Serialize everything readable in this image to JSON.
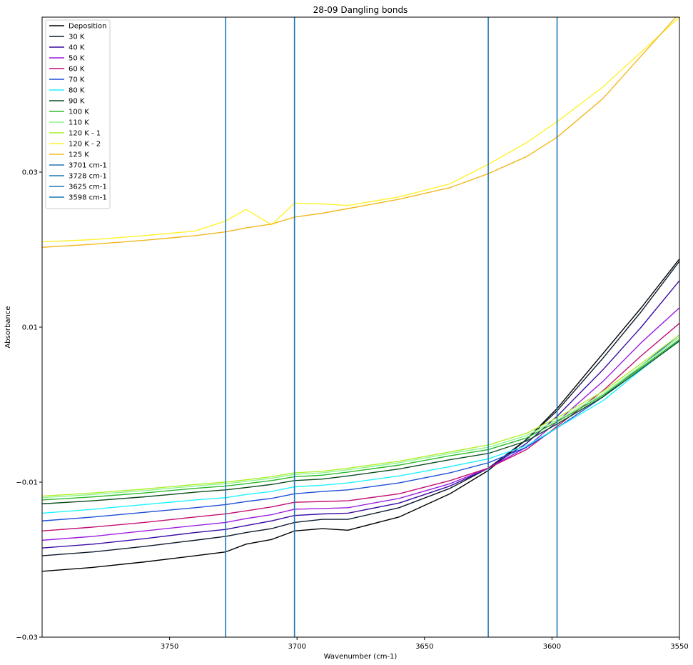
{
  "chart_data": {
    "type": "line",
    "title": "28-09 Dangling bonds",
    "xlabel": "Wavenumber (cm-1)",
    "ylabel": "Absorbance",
    "xlim": [
      3800,
      3550
    ],
    "ylim": [
      -0.03,
      0.05
    ],
    "x_ticks": [
      3750,
      3700,
      3650,
      3600,
      3550
    ],
    "y_ticks": [
      -0.03,
      -0.01,
      0.01,
      0.03
    ],
    "y_tick_labels": [
      "−0.03",
      "−0.01",
      "0.01",
      "0.03"
    ],
    "grid": false,
    "legend_position": "top-left",
    "x": [
      3800,
      3780,
      3760,
      3740,
      3728,
      3720,
      3710,
      3701,
      3690,
      3680,
      3660,
      3640,
      3625,
      3610,
      3598,
      3580,
      3565,
      3550
    ],
    "series": [
      {
        "name": "Deposition",
        "color": "#000000",
        "values": [
          -0.0215,
          -0.021,
          -0.0203,
          -0.0195,
          -0.019,
          -0.018,
          -0.0174,
          -0.0163,
          -0.016,
          -0.0162,
          -0.0145,
          -0.0115,
          -0.0085,
          -0.0045,
          -0.0005,
          0.0066,
          0.0125,
          0.0188
        ]
      },
      {
        "name": "30 K",
        "color": "#0d1a2e",
        "values": [
          -0.0195,
          -0.019,
          -0.0183,
          -0.0175,
          -0.017,
          -0.0165,
          -0.016,
          -0.0152,
          -0.0148,
          -0.0148,
          -0.0133,
          -0.0108,
          -0.0082,
          -0.0045,
          -0.0008,
          0.006,
          0.012,
          0.0185
        ]
      },
      {
        "name": "40 K",
        "color": "#3a0ca3",
        "values": [
          -0.0185,
          -0.018,
          -0.0173,
          -0.0165,
          -0.0161,
          -0.0156,
          -0.015,
          -0.0143,
          -0.0141,
          -0.014,
          -0.0127,
          -0.0105,
          -0.0082,
          -0.005,
          -0.0015,
          0.0045,
          0.01,
          0.016
        ]
      },
      {
        "name": "50 K",
        "color": "#9d1fe0",
        "values": [
          -0.0175,
          -0.017,
          -0.0163,
          -0.0156,
          -0.0152,
          -0.0147,
          -0.0142,
          -0.0135,
          -0.0134,
          -0.0133,
          -0.0121,
          -0.0102,
          -0.0082,
          -0.0055,
          -0.0022,
          0.003,
          0.008,
          0.0125
        ]
      },
      {
        "name": "60 K",
        "color": "#c20f73",
        "values": [
          -0.0163,
          -0.0158,
          -0.0152,
          -0.0145,
          -0.0141,
          -0.0137,
          -0.0132,
          -0.0126,
          -0.0125,
          -0.0124,
          -0.0115,
          -0.0098,
          -0.0082,
          -0.0058,
          -0.0028,
          0.0018,
          0.0063,
          0.0105
        ]
      },
      {
        "name": "70 K",
        "color": "#1c4fd6",
        "values": [
          -0.015,
          -0.0145,
          -0.0139,
          -0.0133,
          -0.0129,
          -0.0125,
          -0.0121,
          -0.0115,
          -0.0112,
          -0.011,
          -0.0101,
          -0.0088,
          -0.0075,
          -0.0055,
          -0.003,
          0.001,
          0.005,
          0.009
        ]
      },
      {
        "name": "80 K",
        "color": "#1ff2ff",
        "values": [
          -0.014,
          -0.0135,
          -0.0129,
          -0.0123,
          -0.012,
          -0.0116,
          -0.0112,
          -0.0106,
          -0.0104,
          -0.0101,
          -0.0092,
          -0.008,
          -0.007,
          -0.0053,
          -0.003,
          0.0005,
          0.0045,
          0.0083
        ]
      },
      {
        "name": "90 K",
        "color": "#0b4d1f",
        "values": [
          -0.0128,
          -0.0124,
          -0.0119,
          -0.0113,
          -0.011,
          -0.0107,
          -0.0103,
          -0.0098,
          -0.0096,
          -0.0092,
          -0.0083,
          -0.0071,
          -0.0063,
          -0.0047,
          -0.0025,
          0.001,
          0.0046,
          0.0082
        ]
      },
      {
        "name": "100 K",
        "color": "#2db82d",
        "values": [
          -0.0123,
          -0.0119,
          -0.0114,
          -0.0108,
          -0.0105,
          -0.0102,
          -0.0098,
          -0.0093,
          -0.0091,
          -0.0087,
          -0.0078,
          -0.0066,
          -0.0058,
          -0.0043,
          -0.0022,
          0.0012,
          0.0048,
          0.0084
        ]
      },
      {
        "name": "110 K",
        "color": "#8ff58f",
        "values": [
          -0.012,
          -0.0116,
          -0.0111,
          -0.0105,
          -0.0102,
          -0.0099,
          -0.0095,
          -0.009,
          -0.0088,
          -0.0084,
          -0.0075,
          -0.0063,
          -0.0055,
          -0.004,
          -0.002,
          0.0014,
          0.005,
          0.0087
        ]
      },
      {
        "name": "120 K - 1",
        "color": "#aef02e",
        "values": [
          -0.0118,
          -0.0114,
          -0.0109,
          -0.0103,
          -0.01,
          -0.0097,
          -0.0093,
          -0.0088,
          -0.0086,
          -0.0082,
          -0.0073,
          -0.0061,
          -0.0052,
          -0.0037,
          -0.0017,
          0.0017,
          0.0053,
          0.009
        ]
      },
      {
        "name": "120 K - 2",
        "color": "#fff22e",
        "values": [
          0.021,
          0.0213,
          0.0218,
          0.0224,
          0.0237,
          0.0252,
          0.0232,
          0.026,
          0.0259,
          0.0257,
          0.0268,
          0.0285,
          0.031,
          0.0338,
          0.0365,
          0.041,
          0.0455,
          0.05
        ]
      },
      {
        "name": "125 K",
        "color": "#f2b820",
        "values": [
          0.0203,
          0.0207,
          0.0212,
          0.0218,
          0.0223,
          0.0228,
          0.0233,
          0.0242,
          0.0247,
          0.0253,
          0.0265,
          0.028,
          0.0298,
          0.032,
          0.0345,
          0.0395,
          0.045,
          0.0505
        ]
      }
    ],
    "vertical_lines": [
      {
        "name": "3701 cm-1",
        "x": 3701,
        "color": "#1f77b4"
      },
      {
        "name": "3728 cm-1",
        "x": 3728,
        "color": "#1f77b4"
      },
      {
        "name": "3625 cm-1",
        "x": 3625,
        "color": "#1f77b4"
      },
      {
        "name": "3598 cm-1",
        "x": 3598,
        "color": "#1f77b4"
      }
    ]
  }
}
